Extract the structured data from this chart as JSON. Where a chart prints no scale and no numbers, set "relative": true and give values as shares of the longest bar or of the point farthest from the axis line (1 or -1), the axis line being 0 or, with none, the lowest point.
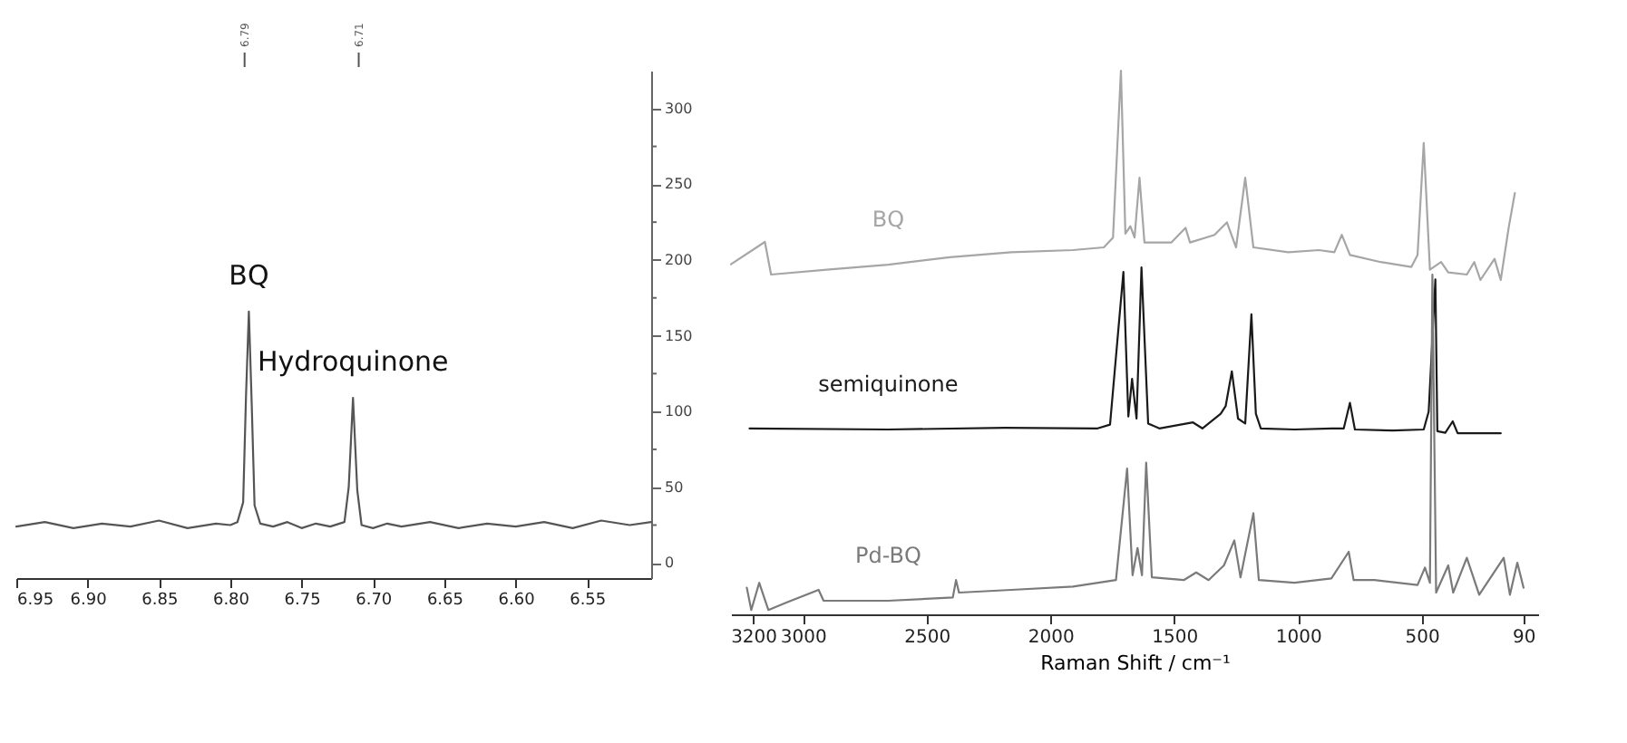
{
  "chart_data": [
    {
      "type": "line",
      "x": [
        6.95,
        6.93,
        6.91,
        6.89,
        6.87,
        6.85,
        6.83,
        6.81,
        6.8,
        6.795,
        6.791,
        6.789,
        6.787,
        6.785,
        6.783,
        6.779,
        6.77,
        6.76,
        6.75,
        6.74,
        6.73,
        6.72,
        6.717,
        6.714,
        6.711,
        6.708,
        6.7,
        6.69,
        6.68,
        6.66,
        6.64,
        6.62,
        6.6,
        6.58,
        6.56,
        6.54,
        6.52,
        6.505
      ],
      "series": [
        {
          "color": "#555555",
          "values": [
            24,
            27,
            23,
            26,
            24,
            28,
            23,
            26,
            25,
            27,
            40,
            110,
            166,
            105,
            38,
            26,
            24,
            27,
            23,
            26,
            24,
            27,
            50,
            109,
            48,
            25,
            23,
            26,
            24,
            27,
            23,
            26,
            24,
            27,
            23,
            28,
            25,
            27
          ]
        }
      ],
      "xlim": [
        6.95,
        6.505
      ],
      "ylim": [
        -10,
        325
      ],
      "xticks": [
        {
          "value": 6.95,
          "label": "6.95"
        },
        {
          "value": 6.9,
          "label": "6.90"
        },
        {
          "value": 6.85,
          "label": "6.85"
        },
        {
          "value": 6.8,
          "label": "6.80"
        },
        {
          "value": 6.75,
          "label": "6.75"
        },
        {
          "value": 6.7,
          "label": "6.70"
        },
        {
          "value": 6.65,
          "label": "6.65"
        },
        {
          "value": 6.6,
          "label": "6.60"
        },
        {
          "value": 6.55,
          "label": "6.55"
        }
      ],
      "x2lim": [
        6.95,
        6.505
      ],
      "x2ticks": [
        6.79,
        6.71
      ],
      "yticks": [
        0,
        {
          "value": 25,
          "label": null
        },
        50,
        {
          "value": 75,
          "label": null
        },
        100,
        {
          "value": 125,
          "label": null
        },
        150,
        {
          "value": 175,
          "label": null
        },
        200,
        {
          "value": 225,
          "label": null
        },
        250,
        {
          "value": 275,
          "label": null
        },
        300
      ],
      "annotations": [
        {
          "text": "BQ",
          "x": 6.787,
          "y": 166
        },
        {
          "text": "Hydroquinone",
          "x": 6.714,
          "y": 109
        }
      ],
      "grid": false,
      "marker": "none",
      "line_style": "solid"
    },
    {
      "type": "line",
      "xlabel": "Raman Shift / cm⁻¹",
      "relative": true,
      "tick_labels": "x",
      "xlim": [
        3290,
        30
      ],
      "xticks": [
        3200,
        3000,
        2500,
        2000,
        1500,
        1000,
        500,
        90
      ],
      "series": [
        {
          "name": "BQ",
          "color": "#a6a6a6",
          "x": [
            3290,
            3153,
            3128,
            2903,
            2655,
            2406,
            2158,
            1909,
            1784,
            1747,
            1715,
            1697,
            1677,
            1660,
            1640,
            1620,
            1511,
            1454,
            1436,
            1337,
            1287,
            1250,
            1213,
            1180,
            1039,
            915,
            853,
            823,
            790,
            666,
            542,
            517,
            492,
            467,
            422,
            393,
            318,
            288,
            263,
            206,
            181,
            149,
            124
          ],
          "values": [
            0.644,
            0.685,
            0.625,
            0.634,
            0.643,
            0.657,
            0.666,
            0.67,
            0.675,
            0.693,
            1.0,
            0.7,
            0.714,
            0.693,
            0.803,
            0.684,
            0.684,
            0.711,
            0.684,
            0.698,
            0.721,
            0.675,
            0.803,
            0.675,
            0.666,
            0.67,
            0.666,
            0.698,
            0.661,
            0.648,
            0.639,
            0.661,
            0.867,
            0.634,
            0.648,
            0.629,
            0.625,
            0.648,
            0.615,
            0.654,
            0.615,
            0.711,
            0.775
          ]
        },
        {
          "name": "semiquinone",
          "color": "#1a1a1a",
          "x": [
            3215,
            2655,
            2183,
            1809,
            1759,
            1705,
            1685,
            1670,
            1652,
            1632,
            1605,
            1560,
            1424,
            1386,
            1312,
            1292,
            1267,
            1242,
            1213,
            1188,
            1170,
            1150,
            1014,
            865,
            815,
            790,
            770,
            616,
            492,
            472,
            445,
            437,
            405,
            375,
            355,
            181
          ],
          "values": [
            0.342,
            0.34,
            0.343,
            0.342,
            0.349,
            0.63,
            0.364,
            0.433,
            0.36,
            0.638,
            0.351,
            0.342,
            0.353,
            0.342,
            0.369,
            0.383,
            0.447,
            0.36,
            0.351,
            0.552,
            0.369,
            0.342,
            0.34,
            0.342,
            0.342,
            0.389,
            0.34,
            0.338,
            0.34,
            0.373,
            0.616,
            0.337,
            0.334,
            0.355,
            0.333,
            0.333
          ]
        },
        {
          "name": "Pd-BQ",
          "color": "#7a7a7a",
          "x": [
            3226,
            3208,
            3176,
            3139,
            3064,
            2936,
            2916,
            2655,
            2394,
            2381,
            2369,
            2158,
            1909,
            1735,
            1690,
            1668,
            1648,
            1630,
            1613,
            1590,
            1461,
            1411,
            1361,
            1299,
            1257,
            1232,
            1180,
            1158,
            1014,
            865,
            795,
            775,
            691,
            517,
            487,
            467,
            457,
            442,
            393,
            373,
            318,
            268,
            169,
            144,
            114,
            89
          ],
          "values": [
            0.049,
            0.008,
            0.058,
            0.008,
            0.022,
            0.045,
            0.025,
            0.025,
            0.031,
            0.063,
            0.04,
            0.045,
            0.051,
            0.063,
            0.268,
            0.072,
            0.122,
            0.072,
            0.279,
            0.068,
            0.063,
            0.077,
            0.063,
            0.09,
            0.136,
            0.068,
            0.186,
            0.063,
            0.058,
            0.066,
            0.115,
            0.063,
            0.063,
            0.054,
            0.086,
            0.058,
            0.625,
            0.04,
            0.09,
            0.04,
            0.104,
            0.036,
            0.104,
            0.036,
            0.095,
            0.049
          ]
        }
      ],
      "grid": false,
      "marker": "none",
      "line_style": "solid"
    }
  ]
}
